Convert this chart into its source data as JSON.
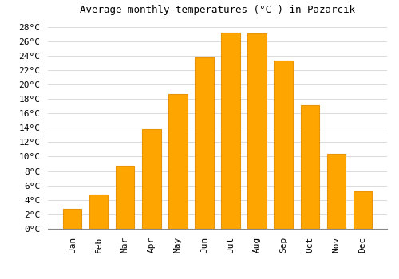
{
  "title": "Average monthly temperatures (°C ) in Pazarcık",
  "months": [
    "Jan",
    "Feb",
    "Mar",
    "Apr",
    "May",
    "Jun",
    "Jul",
    "Aug",
    "Sep",
    "Oct",
    "Nov",
    "Dec"
  ],
  "temperatures": [
    2.8,
    4.8,
    8.7,
    13.8,
    18.7,
    23.7,
    27.2,
    27.1,
    23.3,
    17.1,
    10.4,
    5.2
  ],
  "bar_color": "#FFA500",
  "bar_edge_color": "#E8940A",
  "background_color": "#FFFFFF",
  "grid_color": "#CCCCCC",
  "ylim": [
    0,
    29
  ],
  "yticks": [
    0,
    2,
    4,
    6,
    8,
    10,
    12,
    14,
    16,
    18,
    20,
    22,
    24,
    26,
    28
  ],
  "title_fontsize": 9,
  "tick_fontsize": 8,
  "font_family": "monospace",
  "bar_width": 0.7
}
